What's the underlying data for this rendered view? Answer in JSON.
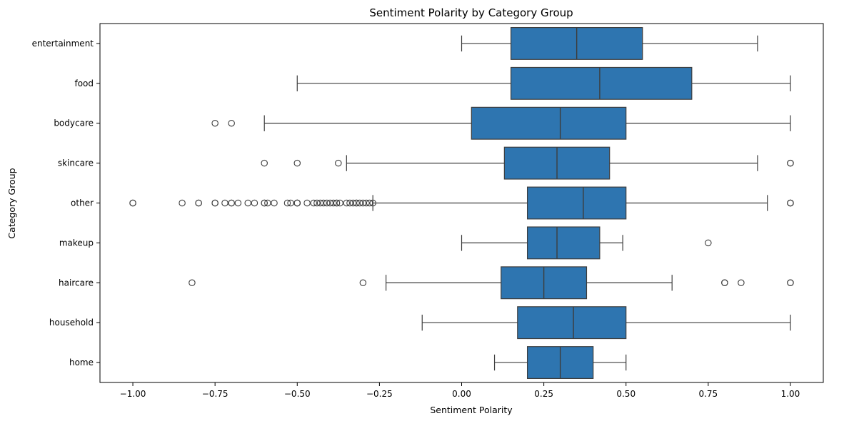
{
  "chart_data": {
    "type": "boxplot",
    "orientation": "horizontal",
    "title": "Sentiment Polarity by Category Group",
    "xlabel": "Sentiment Polarity",
    "ylabel": "Category Group",
    "xlim": [
      -1.1,
      1.1
    ],
    "xticks": [
      -1.0,
      -0.75,
      -0.5,
      -0.25,
      0.0,
      0.25,
      0.5,
      0.75,
      1.0
    ],
    "xtick_labels": [
      "−1.00",
      "−0.75",
      "−0.50",
      "−0.25",
      "0.00",
      "0.25",
      "0.50",
      "0.75",
      "1.00"
    ],
    "grid": false,
    "color": "#2e75b0",
    "categories": [
      "entertainment",
      "food",
      "bodycare",
      "skincare",
      "other",
      "makeup",
      "haircare",
      "household",
      "home"
    ],
    "boxes": [
      {
        "category": "entertainment",
        "whislo": 0.0,
        "q1": 0.15,
        "median": 0.35,
        "q3": 0.55,
        "whishi": 0.9,
        "fliers": []
      },
      {
        "category": "food",
        "whislo": -0.5,
        "q1": 0.15,
        "median": 0.42,
        "q3": 0.7,
        "whishi": 1.0,
        "fliers": []
      },
      {
        "category": "bodycare",
        "whislo": -0.6,
        "q1": 0.03,
        "median": 0.3,
        "q3": 0.5,
        "whishi": 1.0,
        "fliers": [
          -0.75,
          -0.7
        ]
      },
      {
        "category": "skincare",
        "whislo": -0.35,
        "q1": 0.13,
        "median": 0.29,
        "q3": 0.45,
        "whishi": 0.9,
        "fliers": [
          -0.6,
          -0.5,
          -0.375,
          1.0,
          1.0
        ]
      },
      {
        "category": "other",
        "whislo": -0.27,
        "q1": 0.2,
        "median": 0.37,
        "q3": 0.5,
        "whishi": 0.93,
        "fliers": [
          -1.0,
          -1.0,
          -0.85,
          -0.8,
          -0.8,
          -0.75,
          -0.75,
          -0.72,
          -0.7,
          -0.7,
          -0.68,
          -0.65,
          -0.63,
          -0.6,
          -0.6,
          -0.59,
          -0.57,
          -0.53,
          -0.52,
          -0.5,
          -0.5,
          -0.5,
          -0.47,
          -0.45,
          -0.44,
          -0.43,
          -0.42,
          -0.41,
          -0.4,
          -0.39,
          -0.38,
          -0.38,
          -0.37,
          -0.35,
          -0.34,
          -0.33,
          -0.32,
          -0.32,
          -0.31,
          -0.3,
          -0.29,
          -0.28,
          -0.27,
          1.0,
          1.0,
          1.0
        ]
      },
      {
        "category": "makeup",
        "whislo": 0.0,
        "q1": 0.2,
        "median": 0.29,
        "q3": 0.42,
        "whishi": 0.49,
        "fliers": [
          0.75
        ]
      },
      {
        "category": "haircare",
        "whislo": -0.23,
        "q1": 0.12,
        "median": 0.25,
        "q3": 0.38,
        "whishi": 0.64,
        "fliers": [
          -0.82,
          -0.3,
          0.8,
          0.8,
          0.85,
          1.0,
          1.0
        ]
      },
      {
        "category": "household",
        "whislo": -0.12,
        "q1": 0.17,
        "median": 0.34,
        "q3": 0.5,
        "whishi": 1.0,
        "fliers": []
      },
      {
        "category": "home",
        "whislo": 0.1,
        "q1": 0.2,
        "median": 0.3,
        "q3": 0.4,
        "whishi": 0.5,
        "fliers": []
      }
    ]
  }
}
